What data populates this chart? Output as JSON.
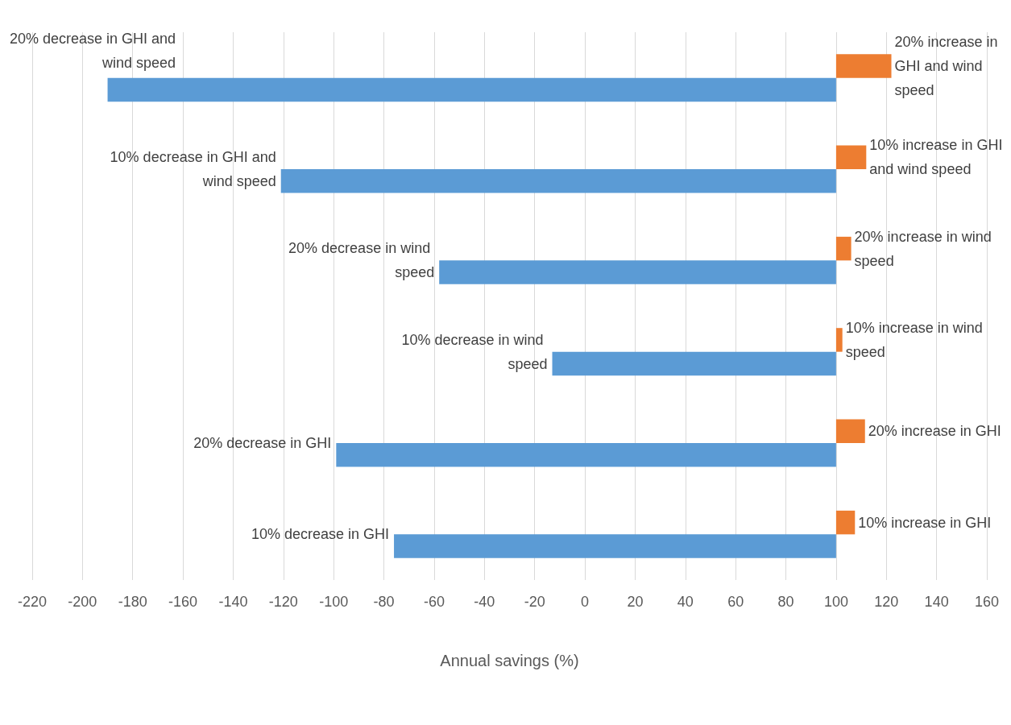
{
  "chart_data": {
    "type": "bar",
    "orientation": "horizontal",
    "xlabel": "Annual savings (%)",
    "categories": [
      "20% decrease in GHI and wind speed",
      "10% decrease in GHI and wind speed",
      "20% decrease in wind speed",
      "10% decrease in wind speed",
      "20% decrease in GHI",
      "10% decrease in GHI"
    ],
    "series": [
      {
        "color": "#5b9bd5",
        "base": [
          100,
          100,
          100,
          100,
          100,
          100
        ],
        "values": [
          -290,
          -221,
          -158,
          -113,
          -199,
          -176
        ]
      },
      {
        "color": "#ed7d31",
        "base": [
          100,
          100,
          100,
          100,
          100,
          100
        ],
        "values": [
          22,
          12,
          6,
          2.5,
          11.5,
          7.5
        ]
      }
    ],
    "annotations": [
      {
        "text": "20% increase in GHI and wind speed",
        "x": 122
      },
      {
        "text": "10% increase in GHI and wind speed",
        "x": 112
      },
      {
        "text": "20% increase in wind speed",
        "x": 106
      },
      {
        "text": "10% increase in wind speed",
        "x": 102.5
      },
      {
        "text": "20% increase in GHI",
        "x": 111.5
      },
      {
        "text": "10% increase in GHI",
        "x": 107.5
      }
    ],
    "xlim": [
      -220,
      160
    ],
    "xticks": [
      -220,
      -200,
      -180,
      -160,
      -140,
      -120,
      -100,
      -80,
      -60,
      -40,
      -20,
      0,
      20,
      40,
      60,
      80,
      100,
      120,
      140,
      160
    ],
    "grid": "x"
  }
}
